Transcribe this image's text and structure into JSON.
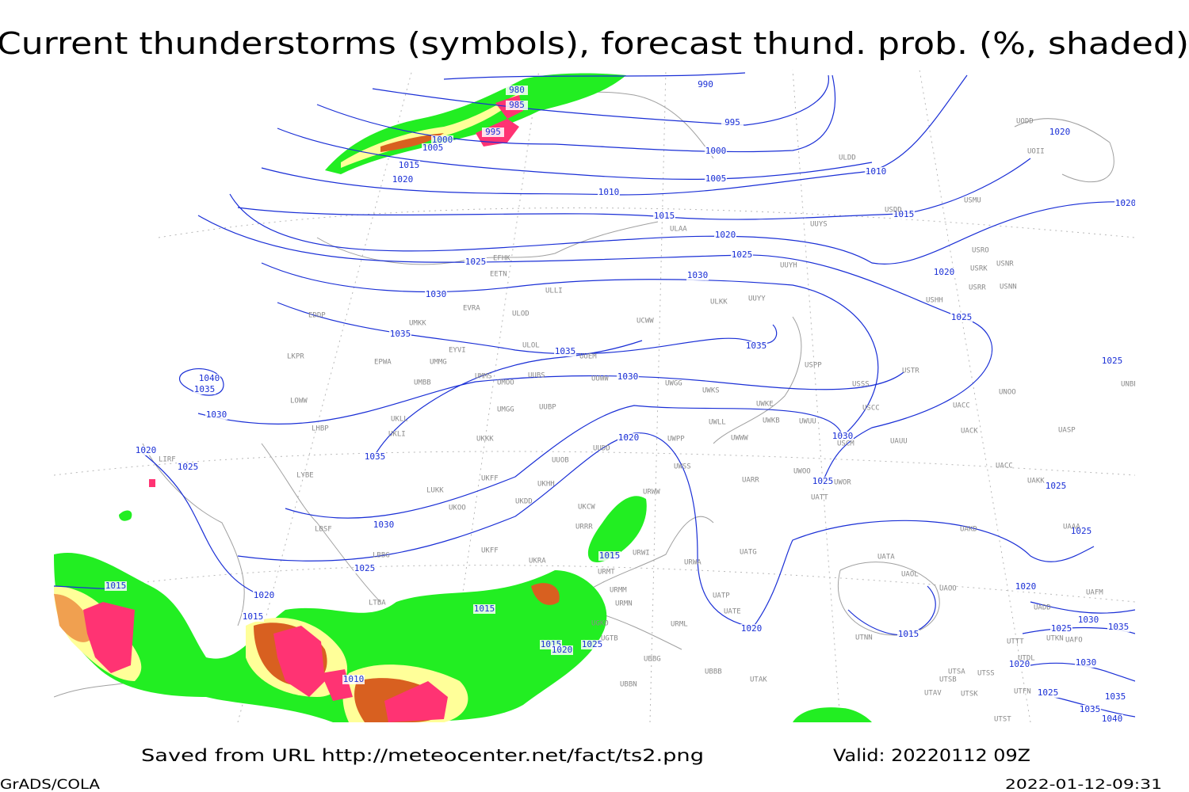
{
  "title": "Current thunderstorms (symbols), forecast thund. prob. (%, shaded)",
  "isobar_labels": [
    980,
    985,
    990,
    995,
    995,
    1000,
    1005,
    1000,
    1005,
    1010,
    1015,
    1020,
    1010,
    1015,
    1015,
    1020,
    1020,
    1020,
    1025,
    1025,
    1030,
    1020,
    1030,
    1025,
    1035,
    1035,
    1035,
    1040,
    1035,
    1030,
    1030,
    1025,
    1030,
    1020,
    1035,
    1020,
    1025,
    1025,
    1025,
    1025,
    1030,
    1015,
    1025,
    1015,
    1020,
    1015,
    1015,
    1020,
    1020,
    1015,
    1030,
    1035,
    1025,
    1015,
    1020,
    1025,
    1010,
    1020,
    1030,
    1035,
    1025,
    1035,
    1040
  ],
  "station_labels": [
    "UODD",
    "UOII",
    "ULDD",
    "USMU",
    "USDD",
    "ULAA",
    "UUYS",
    "USRO",
    "USRK",
    "USNR",
    "USRR",
    "USNN",
    "UUYH",
    "EFHK",
    "EETN",
    "ULLI",
    "USHH",
    "ULKK",
    "UUYY",
    "EVRA",
    "ULOD",
    "EDDP",
    "UMKK",
    "UCWW",
    "EYVI",
    "ULOL",
    "UUEM",
    "LKPR",
    "EPWA",
    "UMMG",
    "USPP",
    "USTR",
    "UMMS",
    "UUBS",
    "UUWW",
    "UMOO",
    "UMBB",
    "UWGG",
    "USSS",
    "UWKS",
    "LOWW",
    "UWKE",
    "UWKB",
    "UWUU",
    "USCC",
    "UACC",
    "UNOO",
    "UNBB",
    "UMGG",
    "UUBP",
    "UKLL",
    "UKLI",
    "LHBP",
    "UWLL",
    "UWWW",
    "USCM",
    "UAUU",
    "UACK",
    "UASP",
    "UKKK",
    "UUDD",
    "UWPP",
    "UUOB",
    "UWSS",
    "UACC",
    "LIRF",
    "LYBE",
    "UKHH",
    "UKFF",
    "UKDD",
    "UARR",
    "UWOO",
    "UWOR",
    "UAKK",
    "LUKK",
    "UKOO",
    "URWW",
    "UKCW",
    "UATT",
    "LBSF",
    "URRR",
    "UAKD",
    "UAAA",
    "URWI",
    "LBBG",
    "UKFF",
    "UKRA",
    "URMT",
    "UATG",
    "URWA",
    "UATA",
    "UAOL",
    "UAOO",
    "UAFM",
    "LTBA",
    "URMM",
    "URMN",
    "UATP",
    "UATE",
    "UADD",
    "UTKN",
    "UAFO",
    "UTTT",
    "URML",
    "UGTB",
    "UGKO",
    "UBBG",
    "UTDL",
    "UTNN",
    "UBBB",
    "UTAK",
    "UBBN",
    "UTSA",
    "UTSS",
    "UTSB",
    "UTAV",
    "UTSK",
    "UTST",
    "UTFN"
  ],
  "footer": {
    "saved_from": "Saved from URL http://meteocenter.net/fact/ts2.png",
    "valid": "Valid: 20220112 09Z",
    "credit": "GrADS/COLA",
    "timestamp": "2022-01-12-09:31"
  }
}
